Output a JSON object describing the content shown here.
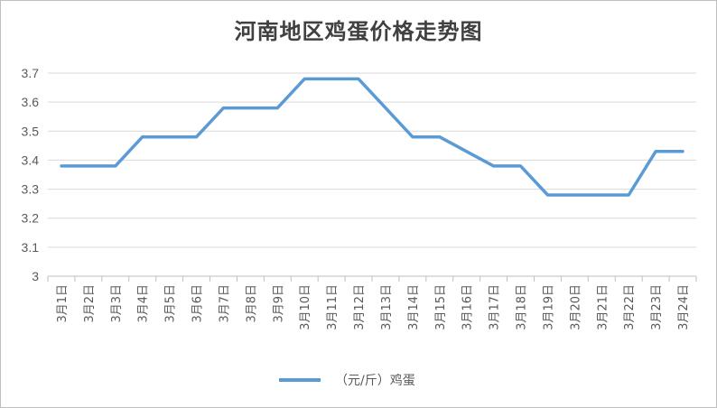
{
  "chart_data": {
    "type": "line",
    "title": "河南地区鸡蛋价格走势图",
    "xlabel": "",
    "ylabel": "",
    "categories": [
      "3月1日",
      "3月2日",
      "3月3日",
      "3月4日",
      "3月5日",
      "3月6日",
      "3月7日",
      "3月8日",
      "3月9日",
      "3月10日",
      "3月11日",
      "3月12日",
      "3月13日",
      "3月14日",
      "3月15日",
      "3月16日",
      "3月17日",
      "3月18日",
      "3月19日",
      "3月20日",
      "3月21日",
      "3月22日",
      "3月23日",
      "3月24日"
    ],
    "series": [
      {
        "name": "（元/斤）鸡蛋",
        "values": [
          3.38,
          3.38,
          3.38,
          3.48,
          3.48,
          3.48,
          3.58,
          3.58,
          3.58,
          3.68,
          3.68,
          3.68,
          3.58,
          3.48,
          3.48,
          3.43,
          3.38,
          3.38,
          3.28,
          3.28,
          3.28,
          3.28,
          3.43,
          3.43
        ]
      }
    ],
    "ylim": [
      3,
      3.7
    ],
    "yticks": [
      3,
      3.1,
      3.2,
      3.3,
      3.4,
      3.5,
      3.6,
      3.7
    ],
    "grid": true,
    "legend_position": "bottom",
    "colors": {
      "line": "#5b9bd5",
      "grid": "#d9d9d9",
      "axis": "#bfbfbf",
      "text": "#595959"
    }
  }
}
